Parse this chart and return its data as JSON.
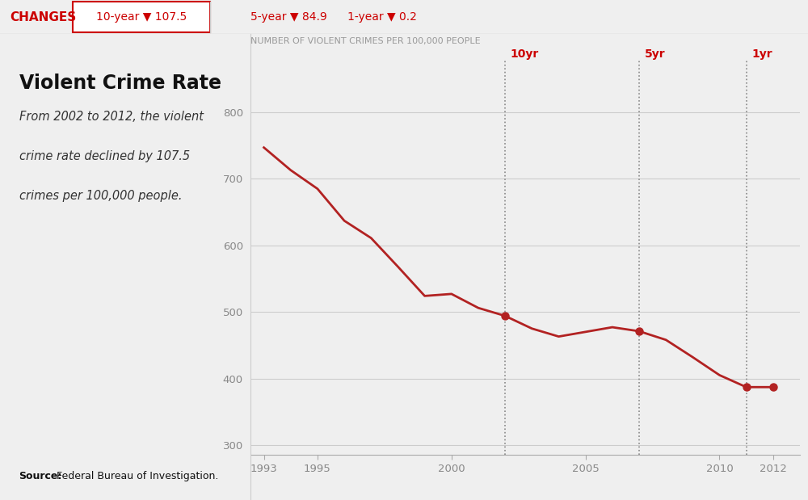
{
  "years": [
    1993,
    1994,
    1995,
    1996,
    1997,
    1998,
    1999,
    2000,
    2001,
    2002,
    2003,
    2004,
    2005,
    2006,
    2007,
    2008,
    2009,
    2010,
    2011,
    2012
  ],
  "values": [
    747,
    713,
    685,
    637,
    611,
    568,
    524,
    527,
    506,
    494,
    475,
    463,
    470,
    477,
    471,
    458,
    432,
    405,
    387,
    387
  ],
  "line_color": "#b22222",
  "bg_color": "#efefef",
  "header_bg": "#ffffff",
  "title_main": "Violent Crime Rate",
  "subtitle_lines": [
    "From 2002 to 2012, the violent",
    "crime rate declined by 107.5",
    "crimes per 100,000 people."
  ],
  "y_label": "NUMBER OF VIOLENT CRIMES PER 100,000 PEOPLE",
  "source_bold": "Source:",
  "source_normal": " Federal Bureau of Investigation.",
  "changes_label": "CHANGES",
  "header_item1": "10-year ▼ 107.5",
  "header_item2": "5-year ▼ 84.9",
  "header_item3": "1-year ▼ 0.2",
  "marker_years": [
    2002,
    2007,
    2011,
    2012
  ],
  "marker_values": [
    494,
    471,
    387,
    387
  ],
  "vline_years": [
    2002,
    2007,
    2011
  ],
  "vline_labels": [
    "10yr",
    "5yr",
    "1yr"
  ],
  "xlim": [
    1992.5,
    2013.0
  ],
  "ylim": [
    285,
    880
  ],
  "yticks": [
    300,
    400,
    500,
    600,
    700,
    800
  ],
  "xticks": [
    1993,
    1995,
    2000,
    2005,
    2010,
    2012
  ],
  "red_color": "#cc0000",
  "grid_color": "#cccccc",
  "text_gray": "#999999",
  "tick_color": "#888888"
}
